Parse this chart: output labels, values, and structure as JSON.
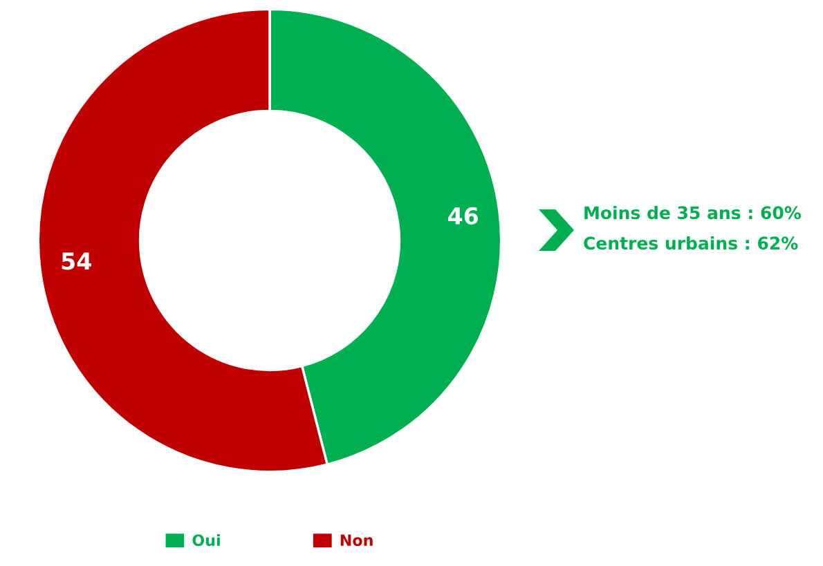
{
  "chart_data": {
    "type": "donut",
    "categories": [
      "Oui",
      "Non"
    ],
    "values": [
      46,
      54
    ],
    "colors": [
      "#00b050",
      "#c00000"
    ],
    "data_labels": true,
    "legend": "bottom",
    "annotations": [
      "Moins de 35 ans : 60%",
      "Centres urbains : 62%"
    ]
  }
}
